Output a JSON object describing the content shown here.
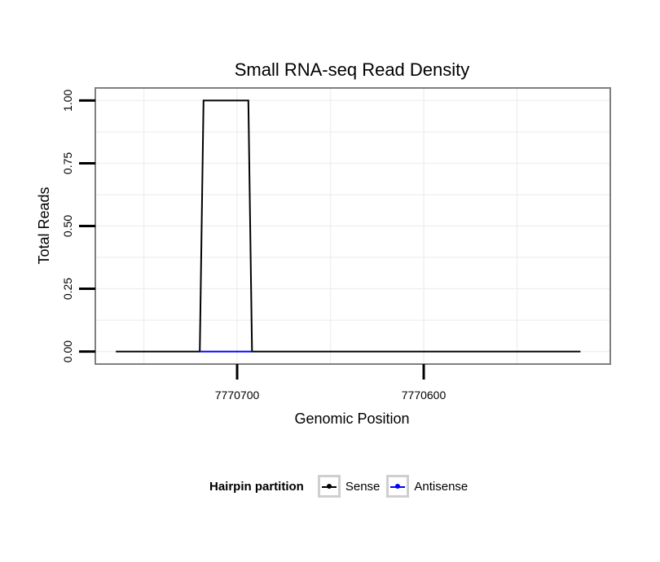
{
  "chart_data": {
    "type": "line",
    "title": "Small RNA-seq Read Density",
    "xlabel": "Genomic Position",
    "ylabel": "Total Reads",
    "x_reversed": true,
    "xlim": [
      7770776,
      7770500
    ],
    "ylim": [
      -0.05,
      1.05
    ],
    "x_ticks": [
      7770700,
      7770600
    ],
    "x_tick_labels": [
      "7770700",
      "7770600"
    ],
    "y_ticks": [
      0,
      0.25,
      0.5,
      0.75,
      1.0
    ],
    "y_tick_labels": [
      "0.00",
      "0.25",
      "0.50",
      "0.75",
      "1.00"
    ],
    "grid": true,
    "legend_position": "bottom",
    "series": [
      {
        "name": "Sense",
        "color": "#000000",
        "x": [
          7770765,
          7770720,
          7770718,
          7770694,
          7770692,
          7770516
        ],
        "y": [
          0,
          0,
          1,
          1,
          0,
          0
        ]
      },
      {
        "name": "Antisense",
        "color": "#0000ff",
        "x": [
          7770720,
          7770692
        ],
        "y": [
          0,
          0
        ]
      }
    ]
  },
  "legend": {
    "title": "Hairpin partition",
    "items": [
      {
        "label": "Sense",
        "color": "#000000"
      },
      {
        "label": "Antisense",
        "color": "#0000ff"
      }
    ]
  }
}
